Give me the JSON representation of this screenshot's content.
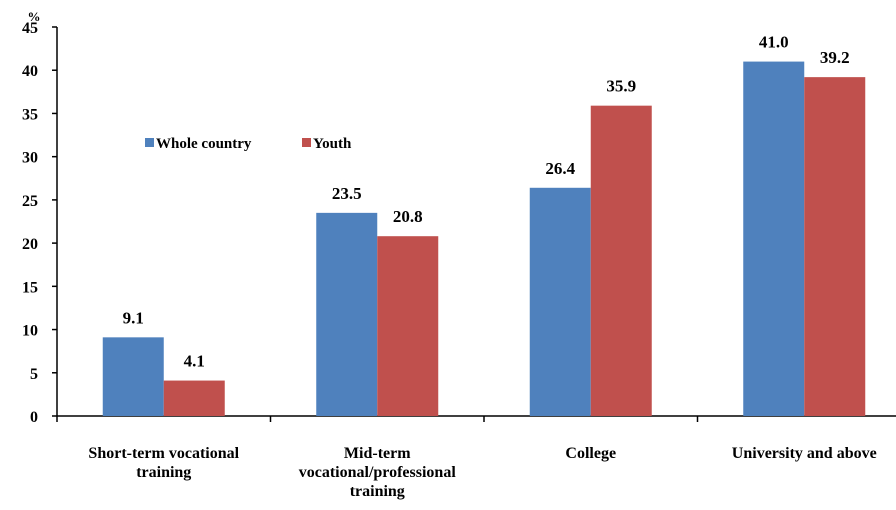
{
  "chart_data": {
    "type": "bar",
    "unit_label": "%",
    "categories": [
      [
        "Short-term vocational",
        "training"
      ],
      [
        "Mid-term",
        "vocational/professional",
        "training"
      ],
      [
        "College"
      ],
      [
        "University and above"
      ]
    ],
    "series": [
      {
        "name": "Whole country",
        "color": "#4F81BD",
        "values": [
          9.1,
          23.5,
          26.4,
          41.0
        ],
        "labels": [
          "9.1",
          "23.5",
          "26.4",
          "41.0"
        ]
      },
      {
        "name": "Youth",
        "color": "#C0504D",
        "values": [
          4.1,
          20.8,
          35.9,
          39.2
        ],
        "labels": [
          "4.1",
          "20.8",
          "35.9",
          "39.2"
        ]
      }
    ],
    "ylim": [
      0,
      45
    ],
    "yticks": [
      0,
      5,
      10,
      15,
      20,
      25,
      30,
      35,
      40,
      45
    ],
    "grid": false,
    "legend_position": "upper-left",
    "xlabel": "",
    "ylabel": ""
  }
}
